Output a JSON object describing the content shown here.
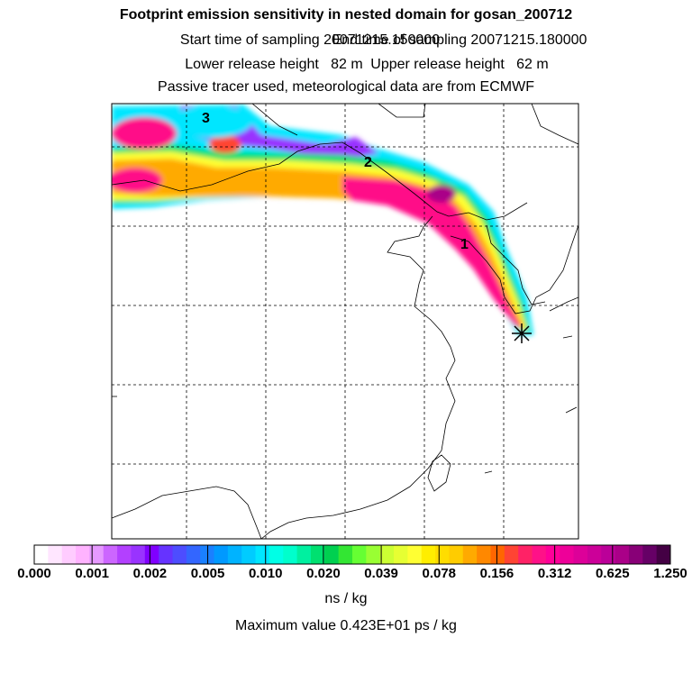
{
  "header": {
    "title": "Footprint emission sensitivity in nested domain for gosan_200712",
    "start_label": "Start time of sampling 20071215.150000",
    "end_label": "End time of sampling 20071215.180000",
    "lower_label": "Lower release height   82 m",
    "upper_label": "Upper release height   62 m",
    "tracer_label": "Passive tracer used, meteorological data are from ECMWF"
  },
  "map": {
    "markers": [
      "3",
      "2",
      "1"
    ]
  },
  "colorbar": {
    "ticks": [
      "0.000",
      "0.001",
      "0.002",
      "0.005",
      "0.010",
      "0.020",
      "0.039",
      "0.078",
      "0.156",
      "0.312",
      "0.625",
      "1.250"
    ],
    "colors": [
      "#ffffff",
      "#ffe6ff",
      "#ffccff",
      "#ffb3ff",
      "#e699ff",
      "#cc66ff",
      "#b340ff",
      "#9933ff",
      "#8000ff",
      "#6633ff",
      "#4d4dff",
      "#3366ff",
      "#1a80ff",
      "#0099ff",
      "#00b3ff",
      "#00ccff",
      "#00e6ff",
      "#00ffe6",
      "#00ffcc",
      "#00f0a0",
      "#00e070",
      "#00d050",
      "#33e633",
      "#66ff33",
      "#99ff33",
      "#ccff33",
      "#e6ff33",
      "#ffff33",
      "#ffee00",
      "#ffdd00",
      "#ffcc00",
      "#ffaa00",
      "#ff8800",
      "#ff6600",
      "#ff4433",
      "#ff2266",
      "#ff1188",
      "#ff0099",
      "#ee0099",
      "#dd0099",
      "#cc0099",
      "#bb0099",
      "#aa0088",
      "#880077",
      "#660066",
      "#440044"
    ],
    "unit": "ns / kg",
    "max_label": "Maximum value  0.423E+01 ps / kg"
  }
}
